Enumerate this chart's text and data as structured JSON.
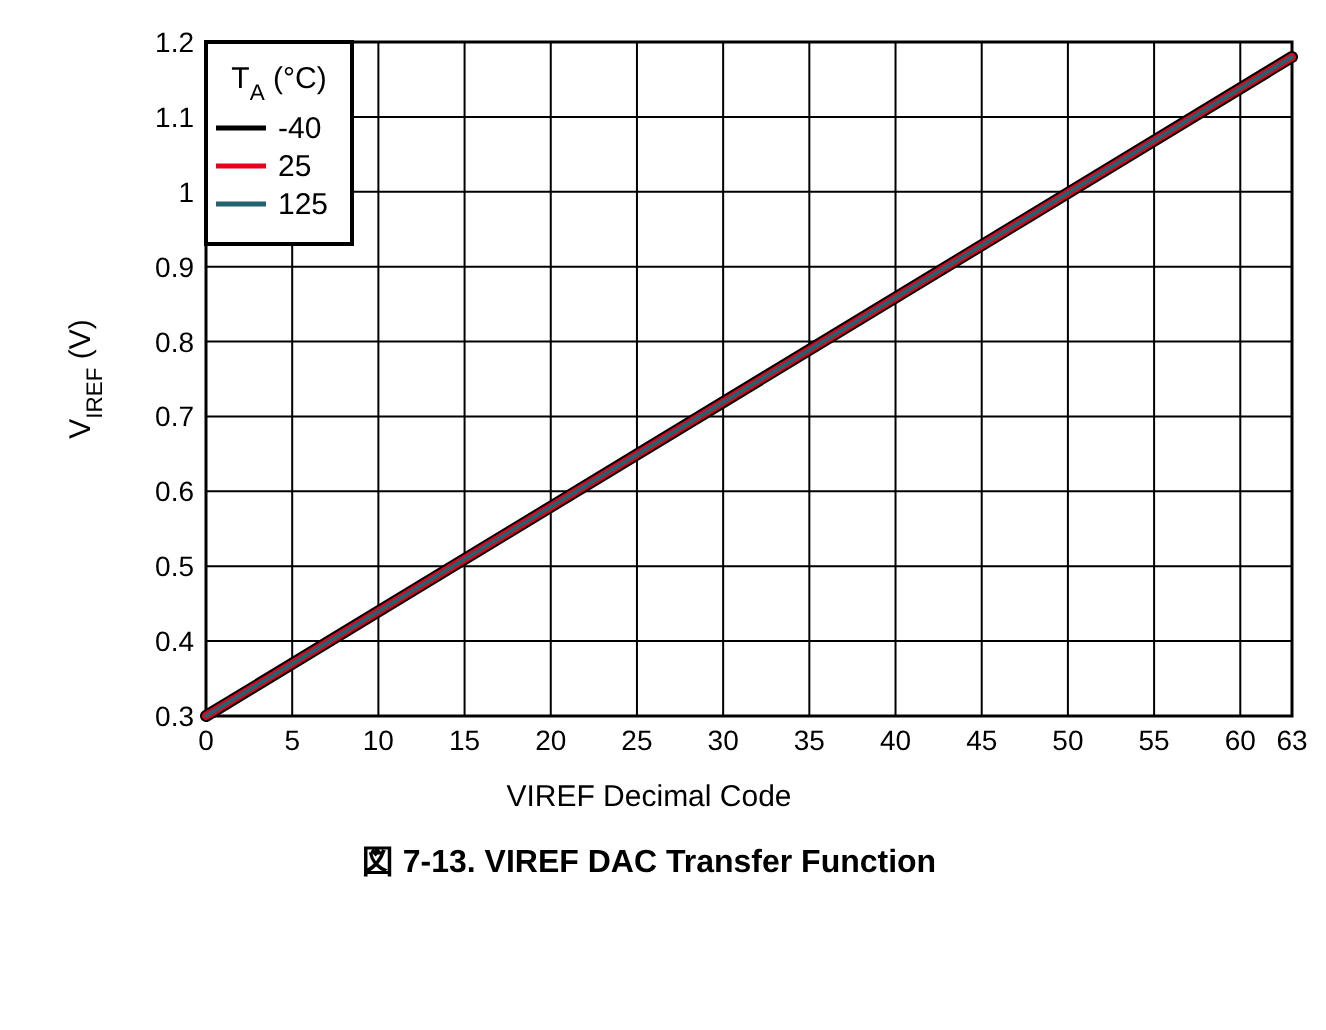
{
  "chart_data": {
    "type": "line",
    "title": "図 7-13. VIREF DAC Transfer Function",
    "xlabel": "VIREF Decimal Code",
    "ylabel": "V$_{IREF}$ (V)",
    "legend_title": "T$_{A}$ (°C)",
    "legend": "top left",
    "grid": true,
    "line_style": "solid",
    "marker": "none",
    "xlim": [
      0,
      63
    ],
    "xticks": [
      0,
      5,
      10,
      15,
      20,
      25,
      30,
      35,
      40,
      45,
      50,
      55,
      60,
      63
    ],
    "ylim": [
      0.3,
      1.2
    ],
    "yticks": [
      0.3,
      0.4,
      0.5,
      0.6,
      0.7,
      0.8,
      0.9,
      1,
      1.1,
      1.2
    ],
    "x": [
      0,
      63
    ],
    "series": [
      {
        "name": "-40",
        "color": "#000000",
        "values": [
          0.3,
          1.18
        ]
      },
      {
        "name": "25",
        "color": "#e8001c",
        "values": [
          0.3,
          1.18
        ]
      },
      {
        "name": "125",
        "color": "#22636f",
        "values": [
          0.3,
          1.18
        ]
      }
    ]
  }
}
